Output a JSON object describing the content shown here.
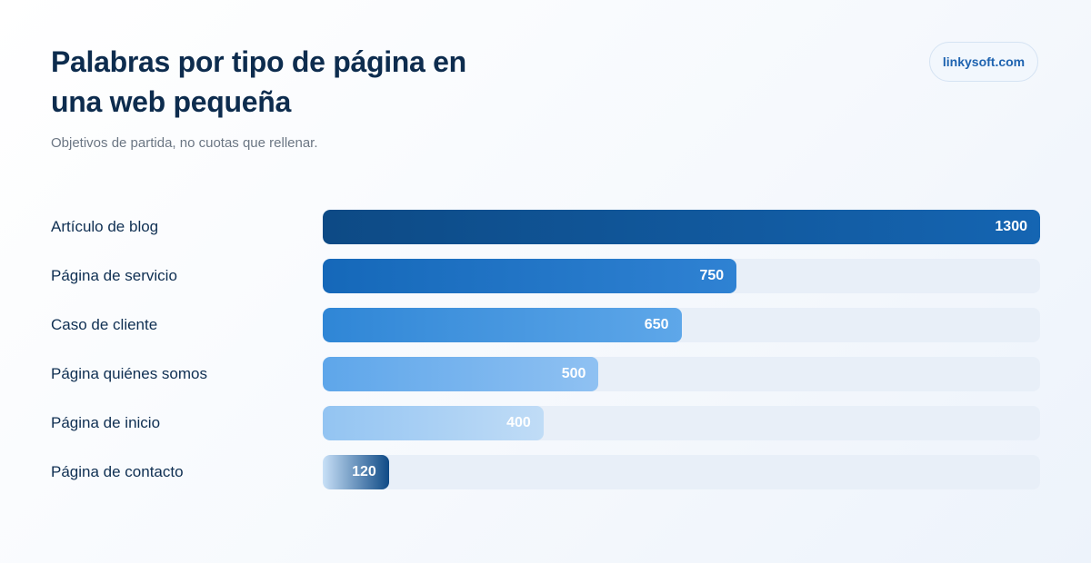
{
  "header": {
    "title": "Palabras por tipo de página en una web pequeña",
    "subtitle": "Objetivos de partida, no cuotas que rellenar.",
    "brand": "linkysoft.com"
  },
  "chart_data": {
    "type": "bar",
    "orientation": "horizontal",
    "title": "Palabras por tipo de página en una web pequeña",
    "subtitle": "Objetivos de partida, no cuotas que rellenar.",
    "xlabel": "",
    "ylabel": "",
    "xlim": [
      0,
      1300
    ],
    "grid": false,
    "categories": [
      "Artículo de blog",
      "Página de servicio",
      "Caso de cliente",
      "Página quiénes somos",
      "Página de inicio",
      "Página de contacto"
    ],
    "values": [
      1300,
      750,
      650,
      500,
      400,
      120
    ],
    "data_labels": [
      "1300",
      "750",
      "650",
      "500",
      "400",
      "120"
    ],
    "colors": {
      "gradients": [
        [
          "#0d4a85",
          "#1565b2"
        ],
        [
          "#1568b9",
          "#2f82d3"
        ],
        [
          "#2f86d6",
          "#5ea7e9"
        ],
        [
          "#5ea6ea",
          "#8fc1f2"
        ],
        [
          "#93c4f2",
          "#c0dcf6"
        ],
        [
          "#c8e0f7",
          "#0f4a86"
        ]
      ],
      "track": "#e8eff8",
      "label": "#0f2f52",
      "value_text": "#ffffff"
    }
  }
}
